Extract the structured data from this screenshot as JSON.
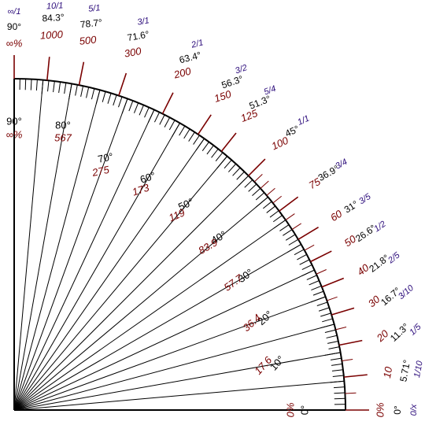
{
  "colors": {
    "degree": "#000000",
    "percent": "#7a0000",
    "fraction": "#2a0a7a",
    "line": "#000000",
    "percent_line": "#7a0000"
  },
  "outer_labels": [
    {
      "angle": 90,
      "deg": "90°",
      "pct": "∞%",
      "frac": "∞/1"
    },
    {
      "angle": 84.3,
      "deg": "84.3°",
      "pct": "1000",
      "frac": "10/1"
    },
    {
      "angle": 78.7,
      "deg": "78.7°",
      "pct": "500",
      "frac": "5/1"
    },
    {
      "angle": 71.6,
      "deg": "71.6°",
      "pct": "300",
      "frac": "3/1"
    },
    {
      "angle": 63.4,
      "deg": "63.4°",
      "pct": "200",
      "frac": "2/1"
    },
    {
      "angle": 56.3,
      "deg": "56.3°",
      "pct": "150",
      "frac": "3/2"
    },
    {
      "angle": 51.3,
      "deg": "51.3°",
      "pct": "125",
      "frac": "5/4"
    },
    {
      "angle": 45,
      "deg": "45°",
      "pct": "100",
      "frac": "1/1"
    },
    {
      "angle": 36.9,
      "deg": "36.9°",
      "pct": "75",
      "frac": "3/4"
    },
    {
      "angle": 31,
      "deg": "31°",
      "pct": "60",
      "frac": "3/5"
    },
    {
      "angle": 26.6,
      "deg": "26.6°",
      "pct": "50",
      "frac": "1/2"
    },
    {
      "angle": 21.8,
      "deg": "21.8°",
      "pct": "40",
      "frac": "2/5"
    },
    {
      "angle": 16.7,
      "deg": "16.7°",
      "pct": "30",
      "frac": "3/10"
    },
    {
      "angle": 11.3,
      "deg": "11.3°",
      "pct": "20",
      "frac": "1/5"
    },
    {
      "angle": 5.71,
      "deg": "5.71°",
      "pct": "10",
      "frac": "1/10"
    },
    {
      "angle": 0,
      "deg": "0°",
      "pct": "0%",
      "frac": "0/x"
    }
  ],
  "inner_labels": [
    {
      "angle": 90,
      "deg": "90°",
      "pct": "∞%"
    },
    {
      "angle": 80,
      "deg": "80°",
      "pct": "567"
    },
    {
      "angle": 70,
      "deg": "70°",
      "pct": "275"
    },
    {
      "angle": 60,
      "deg": "60°",
      "pct": "173"
    },
    {
      "angle": 50,
      "deg": "50°",
      "pct": "119"
    },
    {
      "angle": 40,
      "deg": "40°",
      "pct": "83.9"
    },
    {
      "angle": 30,
      "deg": "30°",
      "pct": "57.7"
    },
    {
      "angle": 20,
      "deg": "20°",
      "pct": "36.4"
    },
    {
      "angle": 10,
      "deg": "10°",
      "pct": "17.6"
    },
    {
      "angle": 0,
      "deg": "0°",
      "pct": "0%"
    }
  ]
}
